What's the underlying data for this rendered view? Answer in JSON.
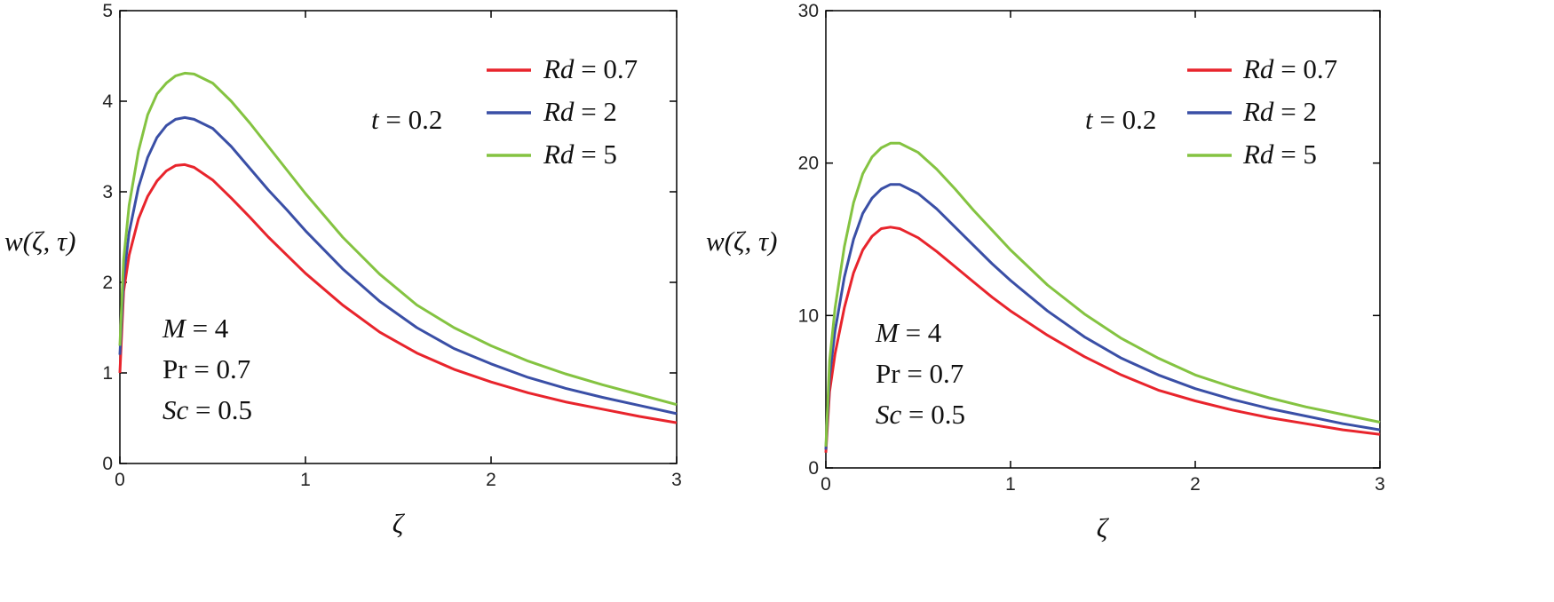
{
  "chart_data": [
    {
      "type": "line",
      "title": "",
      "xlabel": "ζ",
      "ylabel": "w(ζ, τ)",
      "xlim": [
        0,
        3
      ],
      "ylim": [
        0,
        5
      ],
      "xticks": [
        "0",
        "1",
        "2",
        "3"
      ],
      "yticks": [
        "0",
        "1",
        "2",
        "3",
        "4",
        "5"
      ],
      "grid": false,
      "legend_position": "top-right",
      "annotations": {
        "time": {
          "var": "t",
          "text": " = 0.2"
        },
        "params": [
          {
            "var": "M",
            "text": " = 4",
            "italic": true
          },
          {
            "var": "Pr",
            "text": " = 0.7",
            "italic": false
          },
          {
            "var": "Sc",
            "text": " = 0.5",
            "italic": true
          }
        ]
      },
      "series": [
        {
          "name": "Rd = 0.7",
          "var": "Rd",
          "text": " = 0.7",
          "color": "#e8242c",
          "x": [
            0,
            0.02,
            0.05,
            0.1,
            0.15,
            0.2,
            0.25,
            0.3,
            0.35,
            0.4,
            0.5,
            0.6,
            0.7,
            0.8,
            0.9,
            1.0,
            1.2,
            1.4,
            1.6,
            1.8,
            2.0,
            2.2,
            2.4,
            2.6,
            2.8,
            3.0
          ],
          "values": [
            1.0,
            1.9,
            2.3,
            2.7,
            2.95,
            3.12,
            3.23,
            3.29,
            3.3,
            3.27,
            3.13,
            2.93,
            2.72,
            2.5,
            2.3,
            2.1,
            1.75,
            1.45,
            1.22,
            1.04,
            0.9,
            0.78,
            0.68,
            0.6,
            0.52,
            0.45
          ]
        },
        {
          "name": "Rd = 2",
          "var": "Rd",
          "text": " = 2",
          "color": "#3a4fa6",
          "x": [
            0,
            0.02,
            0.05,
            0.1,
            0.15,
            0.2,
            0.25,
            0.3,
            0.35,
            0.4,
            0.5,
            0.6,
            0.7,
            0.8,
            0.9,
            1.0,
            1.2,
            1.4,
            1.6,
            1.8,
            2.0,
            2.2,
            2.4,
            2.6,
            2.8,
            3.0
          ],
          "values": [
            1.2,
            2.05,
            2.55,
            3.05,
            3.38,
            3.6,
            3.73,
            3.8,
            3.82,
            3.8,
            3.7,
            3.5,
            3.26,
            3.02,
            2.8,
            2.57,
            2.15,
            1.79,
            1.5,
            1.27,
            1.1,
            0.95,
            0.83,
            0.73,
            0.64,
            0.55
          ]
        },
        {
          "name": "Rd = 5",
          "var": "Rd",
          "text": " = 5",
          "color": "#84c341",
          "x": [
            0,
            0.02,
            0.05,
            0.1,
            0.15,
            0.2,
            0.25,
            0.3,
            0.35,
            0.4,
            0.5,
            0.6,
            0.7,
            0.8,
            0.9,
            1.0,
            1.2,
            1.4,
            1.6,
            1.8,
            2.0,
            2.2,
            2.4,
            2.6,
            2.8,
            3.0
          ],
          "values": [
            1.3,
            2.25,
            2.85,
            3.45,
            3.85,
            4.08,
            4.2,
            4.28,
            4.31,
            4.3,
            4.2,
            4.0,
            3.76,
            3.5,
            3.24,
            2.98,
            2.5,
            2.09,
            1.75,
            1.5,
            1.3,
            1.13,
            0.99,
            0.87,
            0.76,
            0.65
          ]
        }
      ]
    },
    {
      "type": "line",
      "title": "",
      "xlabel": "ζ",
      "ylabel": "w(ζ, τ)",
      "xlim": [
        0,
        3
      ],
      "ylim": [
        0,
        30
      ],
      "xticks": [
        "0",
        "1",
        "2",
        "3"
      ],
      "yticks": [
        "0",
        "10",
        "20",
        "30"
      ],
      "grid": false,
      "legend_position": "top-right",
      "annotations": {
        "time": {
          "var": "t",
          "text": " = 0.2"
        },
        "params": [
          {
            "var": "M",
            "text": " = 4",
            "italic": true
          },
          {
            "var": "Pr",
            "text": " = 0.7",
            "italic": false
          },
          {
            "var": "Sc",
            "text": " = 0.5",
            "italic": true
          }
        ]
      },
      "series": [
        {
          "name": "Rd = 0.7",
          "var": "Rd",
          "text": " = 0.7",
          "color": "#e8242c",
          "x": [
            0,
            0.02,
            0.05,
            0.1,
            0.15,
            0.2,
            0.25,
            0.3,
            0.35,
            0.4,
            0.5,
            0.6,
            0.7,
            0.8,
            0.9,
            1.0,
            1.2,
            1.4,
            1.6,
            1.8,
            2.0,
            2.2,
            2.4,
            2.6,
            2.8,
            3.0
          ],
          "values": [
            1.0,
            5.0,
            7.5,
            10.5,
            12.8,
            14.3,
            15.2,
            15.7,
            15.8,
            15.7,
            15.1,
            14.2,
            13.2,
            12.2,
            11.2,
            10.3,
            8.7,
            7.3,
            6.1,
            5.1,
            4.4,
            3.8,
            3.3,
            2.9,
            2.5,
            2.2
          ]
        },
        {
          "name": "Rd = 2",
          "var": "Rd",
          "text": " = 2",
          "color": "#3a4fa6",
          "x": [
            0,
            0.02,
            0.05,
            0.1,
            0.15,
            0.2,
            0.25,
            0.3,
            0.35,
            0.4,
            0.5,
            0.6,
            0.7,
            0.8,
            0.9,
            1.0,
            1.2,
            1.4,
            1.6,
            1.8,
            2.0,
            2.2,
            2.4,
            2.6,
            2.8,
            3.0
          ],
          "values": [
            1.2,
            6.0,
            9.0,
            12.5,
            15.0,
            16.7,
            17.7,
            18.3,
            18.6,
            18.6,
            18.0,
            17.0,
            15.8,
            14.6,
            13.4,
            12.3,
            10.3,
            8.6,
            7.2,
            6.1,
            5.2,
            4.5,
            3.9,
            3.4,
            2.9,
            2.5
          ]
        },
        {
          "name": "Rd = 5",
          "var": "Rd",
          "text": " = 5",
          "color": "#84c341",
          "x": [
            0,
            0.02,
            0.05,
            0.1,
            0.15,
            0.2,
            0.25,
            0.3,
            0.35,
            0.4,
            0.5,
            0.6,
            0.7,
            0.8,
            0.9,
            1.0,
            1.2,
            1.4,
            1.6,
            1.8,
            2.0,
            2.2,
            2.4,
            2.6,
            2.8,
            3.0
          ],
          "values": [
            1.4,
            7.0,
            10.5,
            14.5,
            17.4,
            19.3,
            20.4,
            21.0,
            21.3,
            21.3,
            20.7,
            19.6,
            18.3,
            16.9,
            15.6,
            14.3,
            12.0,
            10.1,
            8.5,
            7.2,
            6.1,
            5.3,
            4.6,
            4.0,
            3.5,
            3.0
          ]
        }
      ]
    }
  ]
}
